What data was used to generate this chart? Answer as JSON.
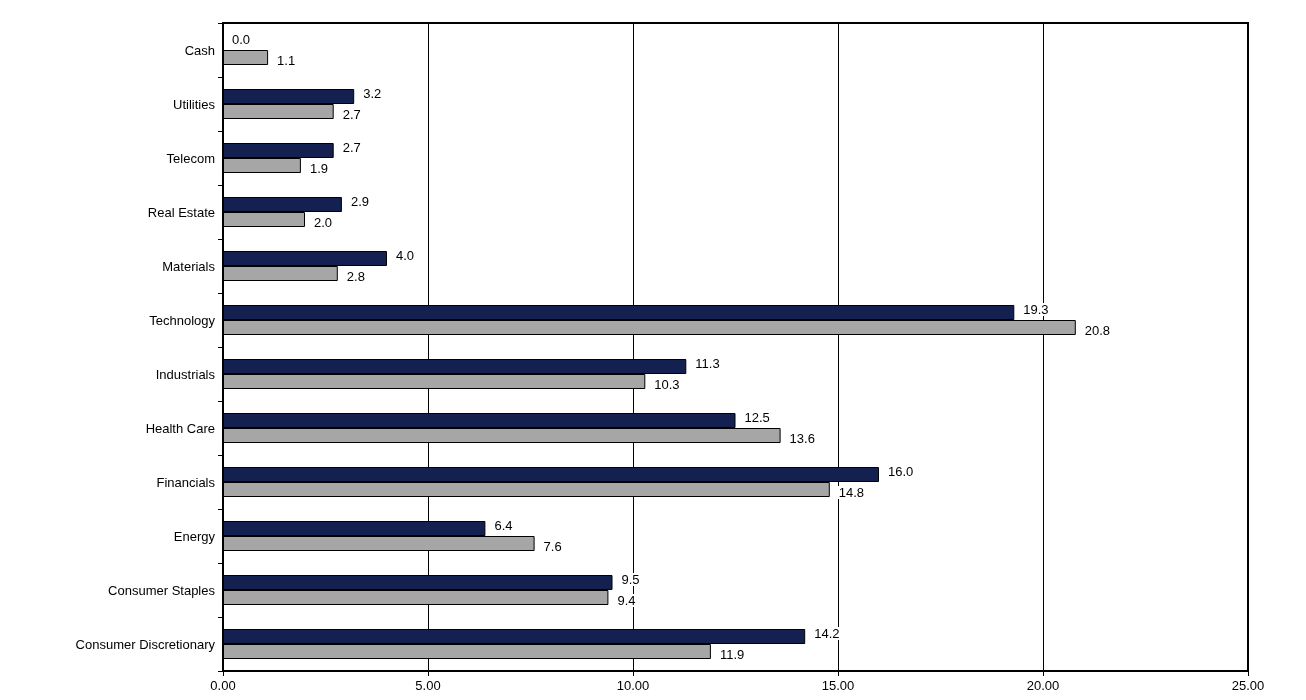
{
  "chart_data": {
    "type": "bar",
    "orientation": "horizontal",
    "categories": [
      "Cash",
      "Utilities",
      "Telecom",
      "Real Estate",
      "Materials",
      "Technology",
      "Industrials",
      "Health Care",
      "Financials",
      "Energy",
      "Consumer Staples",
      "Consumer Discretionary"
    ],
    "series": [
      {
        "color": "#14204f",
        "values": [
          0.0,
          3.2,
          2.7,
          2.9,
          4.0,
          19.3,
          11.3,
          12.5,
          16.0,
          6.4,
          9.5,
          14.2
        ],
        "value_labels": [
          "0.0",
          "3.2",
          "2.7",
          "2.9",
          "4.0",
          "19.3",
          "11.3",
          "12.5",
          "16.0",
          "6.4",
          "9.5",
          "14.2"
        ]
      },
      {
        "color": "#a6a6a6",
        "values": [
          1.1,
          2.7,
          1.9,
          2.0,
          2.8,
          20.8,
          10.3,
          13.6,
          14.8,
          7.6,
          9.4,
          11.9
        ],
        "value_labels": [
          "1.1",
          "2.7",
          "1.9",
          "2.0",
          "2.8",
          "20.8",
          "10.3",
          "13.6",
          "14.8",
          "7.6",
          "9.4",
          "11.9"
        ]
      }
    ],
    "xlim": [
      0,
      25
    ],
    "xticks": [
      {
        "value": 0,
        "label": "0.00"
      },
      {
        "value": 5,
        "label": "5.00"
      },
      {
        "value": 10,
        "label": "10.00"
      },
      {
        "value": 15,
        "label": "15.00"
      },
      {
        "value": 20,
        "label": "20.00"
      },
      {
        "value": 25,
        "label": "25.00"
      }
    ],
    "grid": "x"
  }
}
